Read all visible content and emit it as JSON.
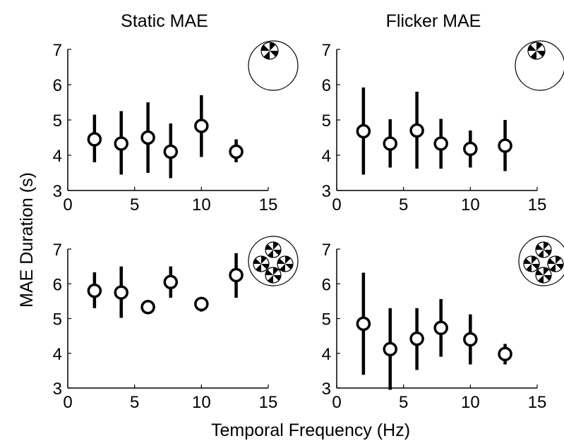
{
  "figure": {
    "ylabel": "MAE Duration (s)",
    "xlabel": "Temporal Frequency (Hz)"
  },
  "chart_data": [
    {
      "type": "scatter",
      "title": "Static MAE",
      "xlim": [
        0,
        15
      ],
      "ylim": [
        3,
        7
      ],
      "xticks": [
        0,
        5,
        10,
        15
      ],
      "yticks": [
        3,
        4,
        5,
        6,
        7
      ],
      "icon": "single-pinwheel-inset",
      "points": [
        {
          "x": 2,
          "y": 4.45,
          "lo": 3.8,
          "hi": 5.15
        },
        {
          "x": 4,
          "y": 4.33,
          "lo": 3.45,
          "hi": 5.25
        },
        {
          "x": 6,
          "y": 4.5,
          "lo": 3.5,
          "hi": 5.5
        },
        {
          "x": 7.7,
          "y": 4.1,
          "lo": 3.35,
          "hi": 4.9
        },
        {
          "x": 10,
          "y": 4.83,
          "lo": 3.95,
          "hi": 5.7
        },
        {
          "x": 12.6,
          "y": 4.1,
          "lo": 3.8,
          "hi": 4.45
        }
      ]
    },
    {
      "type": "scatter",
      "title": "Flicker MAE",
      "xlim": [
        0,
        15
      ],
      "ylim": [
        3,
        7
      ],
      "xticks": [
        0,
        5,
        10,
        15
      ],
      "yticks": [
        3,
        4,
        5,
        6,
        7
      ],
      "icon": "single-pinwheel-inset",
      "points": [
        {
          "x": 2,
          "y": 4.68,
          "lo": 3.45,
          "hi": 5.92
        },
        {
          "x": 4,
          "y": 4.33,
          "lo": 3.65,
          "hi": 5.02
        },
        {
          "x": 6,
          "y": 4.7,
          "lo": 3.62,
          "hi": 5.8
        },
        {
          "x": 7.8,
          "y": 4.33,
          "lo": 3.62,
          "hi": 5.03
        },
        {
          "x": 10,
          "y": 4.18,
          "lo": 3.65,
          "hi": 4.7
        },
        {
          "x": 12.6,
          "y": 4.27,
          "lo": 3.55,
          "hi": 5.0
        }
      ]
    },
    {
      "type": "scatter",
      "title": "",
      "xlim": [
        0,
        15
      ],
      "ylim": [
        3,
        7
      ],
      "xticks": [
        0,
        5,
        10,
        15
      ],
      "yticks": [
        3,
        4,
        5,
        6,
        7
      ],
      "icon": "four-pinwheel-inset",
      "points": [
        {
          "x": 2,
          "y": 5.8,
          "lo": 5.3,
          "hi": 6.33
        },
        {
          "x": 4,
          "y": 5.75,
          "lo": 5.02,
          "hi": 6.5
        },
        {
          "x": 6,
          "y": 5.33,
          "lo": 5.15,
          "hi": 5.48
        },
        {
          "x": 7.7,
          "y": 6.05,
          "lo": 5.6,
          "hi": 6.5
        },
        {
          "x": 10,
          "y": 5.42,
          "lo": 5.2,
          "hi": 5.62
        },
        {
          "x": 12.6,
          "y": 6.25,
          "lo": 5.6,
          "hi": 6.88
        }
      ]
    },
    {
      "type": "scatter",
      "title": "",
      "xlim": [
        0,
        15
      ],
      "ylim": [
        3,
        7
      ],
      "xticks": [
        0,
        5,
        10,
        15
      ],
      "yticks": [
        3,
        4,
        5,
        6,
        7
      ],
      "icon": "four-pinwheel-inset",
      "points": [
        {
          "x": 2,
          "y": 4.85,
          "lo": 3.38,
          "hi": 6.32
        },
        {
          "x": 4,
          "y": 4.12,
          "lo": 2.95,
          "hi": 5.3
        },
        {
          "x": 6,
          "y": 4.42,
          "lo": 3.52,
          "hi": 5.3
        },
        {
          "x": 7.8,
          "y": 4.73,
          "lo": 3.9,
          "hi": 5.56
        },
        {
          "x": 10,
          "y": 4.4,
          "lo": 3.68,
          "hi": 5.12
        },
        {
          "x": 12.6,
          "y": 3.98,
          "lo": 3.68,
          "hi": 4.27
        }
      ]
    }
  ]
}
